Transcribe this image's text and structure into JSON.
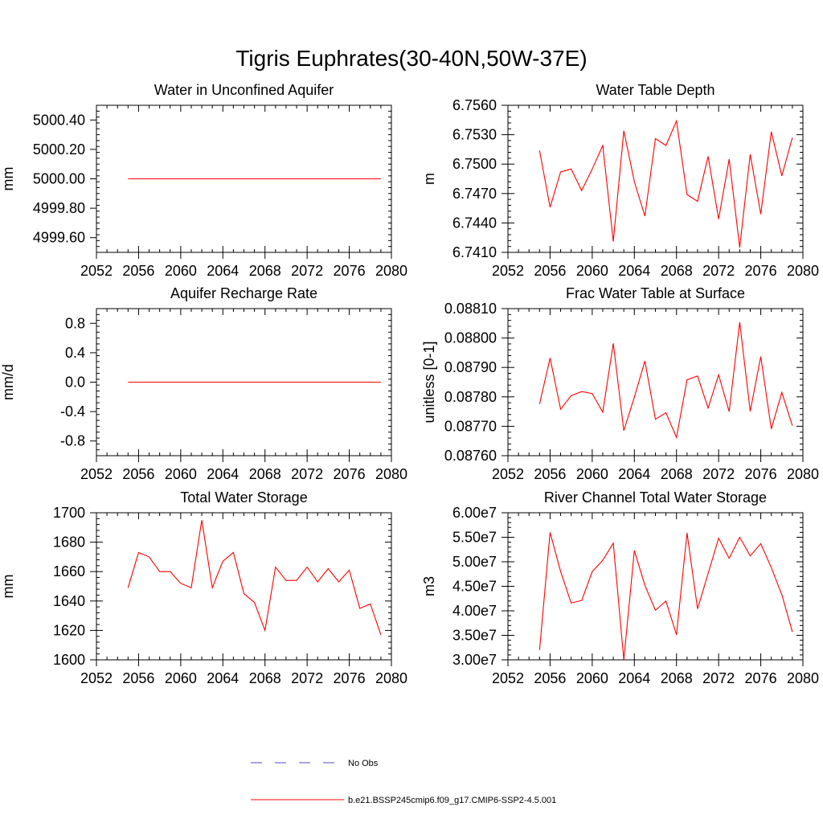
{
  "figure": {
    "title": "Tigris Euphrates(30-40N,50W-37E)"
  },
  "legend": {
    "entries": [
      {
        "label": "No Obs",
        "color": "#4a4ac8",
        "dash": true
      },
      {
        "label": "b.e21.BSSP245cmip6.f09_g17.CMIP6-SSP2-4.5.001",
        "color": "#ff0000",
        "dash": false
      }
    ]
  },
  "chart_data": [
    {
      "id": "unconfined",
      "type": "line",
      "title": "Water in Unconfined Aquifer",
      "ylabel": "mm",
      "xlim": [
        2052,
        2080
      ],
      "ylim": [
        4999.5,
        5000.5
      ],
      "xticks": [
        "2052",
        "2056",
        "2060",
        "2064",
        "2068",
        "2072",
        "2076",
        "2080"
      ],
      "yticks": [
        {
          "v": 4999.6,
          "label": "4999.60"
        },
        {
          "v": 4999.8,
          "label": "4999.80"
        },
        {
          "v": 5000.0,
          "label": "5000.00"
        },
        {
          "v": 5000.2,
          "label": "5000.20"
        },
        {
          "v": 5000.4,
          "label": "5000.40"
        }
      ],
      "series": [
        {
          "color": "#ff0000",
          "x": [
            2055,
            2079
          ],
          "y": [
            5000.0,
            5000.0
          ]
        }
      ]
    },
    {
      "id": "wtd",
      "type": "line",
      "title": "Water Table Depth",
      "ylabel": "m",
      "xlim": [
        2052,
        2080
      ],
      "ylim": [
        6.741,
        6.756
      ],
      "xticks": [
        "2052",
        "2056",
        "2060",
        "2064",
        "2068",
        "2072",
        "2076",
        "2080"
      ],
      "yticks": [
        {
          "v": 6.741,
          "label": "6.7410"
        },
        {
          "v": 6.744,
          "label": "6.7440"
        },
        {
          "v": 6.747,
          "label": "6.7470"
        },
        {
          "v": 6.75,
          "label": "6.7500"
        },
        {
          "v": 6.753,
          "label": "6.7530"
        },
        {
          "v": 6.756,
          "label": "6.7560"
        }
      ],
      "series": [
        {
          "color": "#ff0000",
          "x": [
            2055,
            2056,
            2057,
            2058,
            2059,
            2060,
            2061,
            2062,
            2063,
            2064,
            2065,
            2066,
            2067,
            2068,
            2069,
            2070,
            2071,
            2072,
            2073,
            2074,
            2075,
            2076,
            2077,
            2078,
            2079
          ],
          "y": [
            6.7514,
            6.7456,
            6.7492,
            6.7495,
            6.7473,
            6.7495,
            6.7519,
            6.7421,
            6.7534,
            6.7482,
            6.7447,
            6.7526,
            6.7519,
            6.7544,
            6.7469,
            6.7462,
            6.7508,
            6.7444,
            6.7505,
            6.7415,
            6.751,
            6.7449,
            6.7533,
            6.7488,
            6.7527
          ]
        }
      ]
    },
    {
      "id": "recharge",
      "type": "line",
      "title": "Aquifer Recharge Rate",
      "ylabel": "mm/d",
      "xlim": [
        2052,
        2080
      ],
      "ylim": [
        -1.0,
        1.0
      ],
      "xticks": [
        "2052",
        "2056",
        "2060",
        "2064",
        "2068",
        "2072",
        "2076",
        "2080"
      ],
      "yticks": [
        {
          "v": -0.8,
          "label": "-0.8"
        },
        {
          "v": -0.4,
          "label": "-0.4"
        },
        {
          "v": 0.0,
          "label": "0.0"
        },
        {
          "v": 0.4,
          "label": "0.4"
        },
        {
          "v": 0.8,
          "label": "0.8"
        }
      ],
      "series": [
        {
          "color": "#ff0000",
          "x": [
            2055,
            2079
          ],
          "y": [
            0.0,
            0.0
          ]
        }
      ]
    },
    {
      "id": "fracwt",
      "type": "line",
      "title": "Frac Water Table at Surface",
      "ylabel": "unitless [0-1]",
      "xlim": [
        2052,
        2080
      ],
      "ylim": [
        0.0876,
        0.0881
      ],
      "xticks": [
        "2052",
        "2056",
        "2060",
        "2064",
        "2068",
        "2072",
        "2076",
        "2080"
      ],
      "yticks": [
        {
          "v": 0.0876,
          "label": "0.08760"
        },
        {
          "v": 0.0877,
          "label": "0.08770"
        },
        {
          "v": 0.0878,
          "label": "0.08780"
        },
        {
          "v": 0.0879,
          "label": "0.08790"
        },
        {
          "v": 0.088,
          "label": "0.08800"
        },
        {
          "v": 0.0881,
          "label": "0.08810"
        }
      ],
      "series": [
        {
          "color": "#ff0000",
          "x": [
            2055,
            2056,
            2057,
            2058,
            2059,
            2060,
            2061,
            2062,
            2063,
            2064,
            2065,
            2066,
            2067,
            2068,
            2069,
            2070,
            2071,
            2072,
            2073,
            2074,
            2075,
            2076,
            2077,
            2078,
            2079
          ],
          "y": [
            0.087776,
            0.087932,
            0.087758,
            0.087804,
            0.087818,
            0.087811,
            0.087748,
            0.087982,
            0.087685,
            0.087799,
            0.087922,
            0.087724,
            0.087746,
            0.087662,
            0.087858,
            0.087871,
            0.087762,
            0.087875,
            0.08775,
            0.088054,
            0.087751,
            0.087937,
            0.087691,
            0.087815,
            0.087702
          ]
        }
      ]
    },
    {
      "id": "tws",
      "type": "line",
      "title": "Total Water Storage",
      "ylabel": "mm",
      "xlim": [
        2052,
        2080
      ],
      "ylim": [
        1600,
        1700
      ],
      "xticks": [
        "2052",
        "2056",
        "2060",
        "2064",
        "2068",
        "2072",
        "2076",
        "2080"
      ],
      "yticks": [
        {
          "v": 1600,
          "label": "1600"
        },
        {
          "v": 1620,
          "label": "1620"
        },
        {
          "v": 1640,
          "label": "1640"
        },
        {
          "v": 1660,
          "label": "1660"
        },
        {
          "v": 1680,
          "label": "1680"
        },
        {
          "v": 1700,
          "label": "1700"
        }
      ],
      "series": [
        {
          "color": "#ff0000",
          "x": [
            2055,
            2056,
            2057,
            2058,
            2059,
            2060,
            2061,
            2062,
            2063,
            2064,
            2065,
            2066,
            2067,
            2068,
            2069,
            2070,
            2071,
            2072,
            2073,
            2074,
            2075,
            2076,
            2077,
            2078,
            2079
          ],
          "y": [
            1649,
            1673,
            1670,
            1660,
            1660,
            1652,
            1649,
            1695,
            1649,
            1667,
            1673,
            1645,
            1639,
            1620,
            1663,
            1654,
            1654,
            1663,
            1653,
            1662,
            1653,
            1661,
            1635,
            1638,
            1617
          ]
        }
      ]
    },
    {
      "id": "river",
      "type": "line",
      "title": "River Channel Total Water Storage",
      "ylabel": "m3",
      "xlim": [
        2052,
        2080
      ],
      "ylim": [
        30000000,
        60000000
      ],
      "xticks": [
        "2052",
        "2056",
        "2060",
        "2064",
        "2068",
        "2072",
        "2076",
        "2080"
      ],
      "yticks": [
        {
          "v": 30000000,
          "label": "3.00e7"
        },
        {
          "v": 35000000,
          "label": "3.50e7"
        },
        {
          "v": 40000000,
          "label": "4.00e7"
        },
        {
          "v": 45000000,
          "label": "4.50e7"
        },
        {
          "v": 50000000,
          "label": "5.00e7"
        },
        {
          "v": 55000000,
          "label": "5.50e7"
        },
        {
          "v": 60000000,
          "label": "6.00e7"
        }
      ],
      "series": [
        {
          "color": "#ff0000",
          "x": [
            2055,
            2056,
            2057,
            2058,
            2059,
            2060,
            2061,
            2062,
            2063,
            2064,
            2065,
            2066,
            2067,
            2068,
            2069,
            2070,
            2071,
            2072,
            2073,
            2074,
            2075,
            2076,
            2077,
            2078,
            2079
          ],
          "y": [
            32000000,
            56000000,
            48000000,
            41600000,
            42100000,
            48000000,
            50300000,
            53800000,
            30000000,
            52300000,
            45200000,
            40100000,
            42000000,
            35100000,
            55900000,
            40400000,
            47600000,
            54800000,
            50700000,
            55000000,
            51200000,
            53700000,
            48800000,
            43300000,
            35700000
          ]
        }
      ]
    }
  ]
}
